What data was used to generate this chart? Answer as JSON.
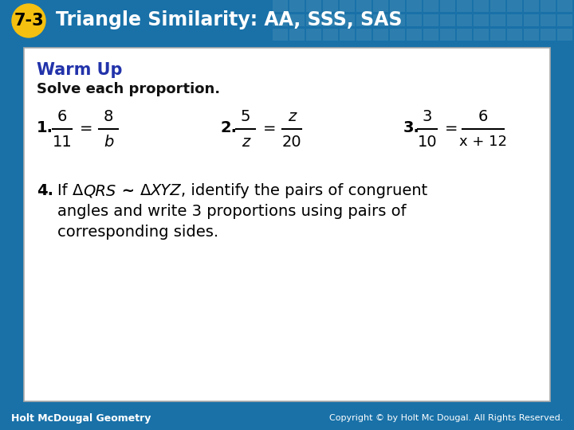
{
  "header_bg_color": "#1971a8",
  "header_text": "Triangle Similarity: AA, SSS, SAS",
  "header_number": "7-3",
  "header_number_bg": "#f5c010",
  "footer_bg_color": "#1971a8",
  "footer_left": "Holt McDougal Geometry",
  "footer_right": "Copyright © by Holt Mc Dougal. All Rights Reserved.",
  "content_bg": "#ffffff",
  "warm_up_color": "#2233aa",
  "warm_up_title": "Warm Up",
  "subtitle": "Solve each proportion.",
  "body_color": "#111111",
  "tile_color": "#5599bb"
}
